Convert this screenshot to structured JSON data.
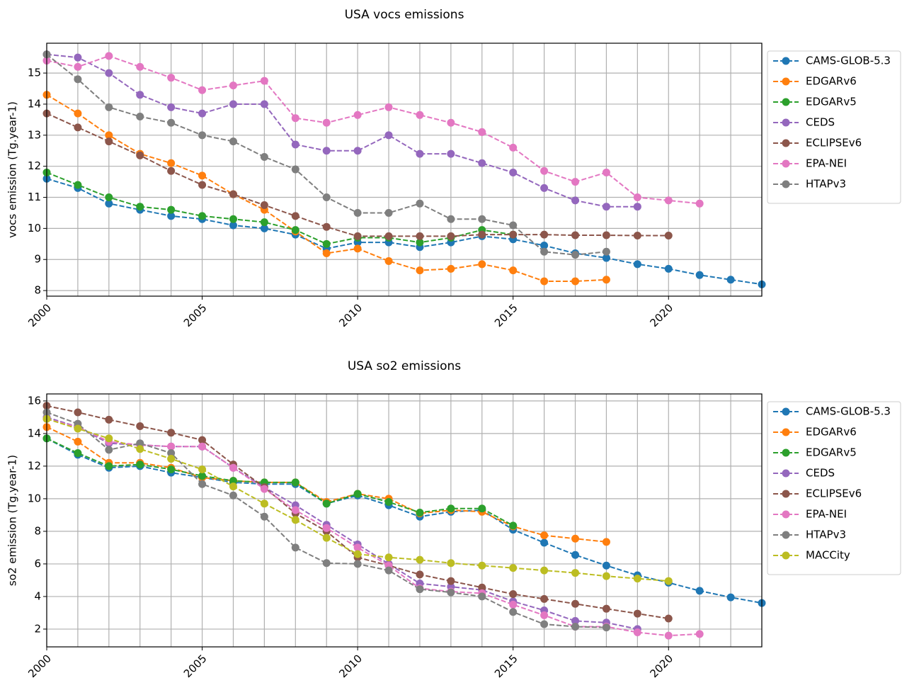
{
  "chart_data": [
    {
      "type": "line",
      "title": "USA vocs emissions",
      "ylabel": "vocs emission (Tg.year-1)",
      "x": [
        2000,
        2001,
        2002,
        2003,
        2004,
        2005,
        2006,
        2007,
        2008,
        2009,
        2010,
        2011,
        2012,
        2013,
        2014,
        2015,
        2016,
        2017,
        2018,
        2019,
        2020,
        2021,
        2022,
        2023
      ],
      "xlim": [
        2000,
        2023
      ],
      "xticks": [
        2000,
        2005,
        2010,
        2015,
        2020
      ],
      "xminorticks": [
        2001,
        2002,
        2003,
        2004,
        2006,
        2007,
        2008,
        2009,
        2011,
        2012,
        2013,
        2014,
        2016,
        2017,
        2018,
        2019,
        2021,
        2022,
        2023
      ],
      "ylim": [
        7.82,
        15.96
      ],
      "yticks": [
        8,
        9,
        10,
        11,
        12,
        13,
        14,
        15
      ],
      "grid": true,
      "legend": "outside-upper-right",
      "series": [
        {
          "name": "CAMS-GLOB-5.3",
          "color": "#1f77b4",
          "values": [
            11.6,
            11.3,
            10.8,
            10.6,
            10.4,
            10.3,
            10.1,
            10.0,
            9.8,
            9.35,
            9.55,
            9.55,
            9.4,
            9.55,
            9.75,
            9.65,
            9.45,
            9.2,
            9.05,
            8.85,
            8.7,
            8.5,
            8.35,
            8.2
          ]
        },
        {
          "name": "EDGARv6",
          "color": "#ff7f0e",
          "values": [
            14.3,
            13.7,
            13.0,
            12.4,
            12.1,
            11.7,
            11.1,
            10.6,
            9.9,
            9.2,
            9.35,
            8.95,
            8.65,
            8.7,
            8.85,
            8.65,
            8.3,
            8.3,
            8.35,
            null,
            null,
            null,
            null,
            null
          ]
        },
        {
          "name": "EDGARv5",
          "color": "#2ca02c",
          "values": [
            11.8,
            11.4,
            11.0,
            10.7,
            10.6,
            10.4,
            10.3,
            10.2,
            9.95,
            9.5,
            9.7,
            9.7,
            9.55,
            9.7,
            9.95,
            9.8,
            null,
            null,
            null,
            null,
            null,
            null,
            null,
            null
          ]
        },
        {
          "name": "CEDS",
          "color": "#9467bd",
          "values": [
            15.6,
            15.5,
            15.0,
            14.3,
            13.9,
            13.7,
            14.0,
            14.0,
            12.7,
            12.5,
            12.5,
            13.0,
            12.4,
            12.4,
            12.1,
            11.8,
            11.3,
            10.9,
            10.7,
            10.7,
            null,
            null,
            null,
            null
          ]
        },
        {
          "name": "ECLIPSEv6",
          "color": "#8c564b",
          "values": [
            13.7,
            13.25,
            12.8,
            12.35,
            11.85,
            11.4,
            11.1,
            10.75,
            10.4,
            10.05,
            9.75,
            9.75,
            9.75,
            9.75,
            9.8,
            9.8,
            9.8,
            9.78,
            9.78,
            9.77,
            9.77,
            null,
            null,
            null
          ]
        },
        {
          "name": "EPA-NEI",
          "color": "#e377c2",
          "values": [
            15.4,
            15.2,
            15.55,
            15.2,
            14.85,
            14.45,
            14.6,
            14.75,
            13.55,
            13.4,
            13.65,
            13.9,
            13.65,
            13.4,
            13.1,
            12.6,
            11.85,
            11.5,
            11.8,
            11.0,
            10.9,
            10.8,
            null,
            null
          ]
        },
        {
          "name": "HTAPv3",
          "color": "#7f7f7f",
          "values": [
            15.6,
            14.8,
            13.9,
            13.6,
            13.4,
            13.0,
            12.8,
            12.3,
            11.9,
            11.0,
            10.5,
            10.5,
            10.8,
            10.3,
            10.3,
            10.1,
            9.25,
            9.15,
            9.25,
            null,
            null,
            null,
            null,
            null
          ]
        }
      ]
    },
    {
      "type": "line",
      "title": "USA so2 emissions",
      "ylabel": "so2 emission (Tg.year-1)",
      "x": [
        2000,
        2001,
        2002,
        2003,
        2004,
        2005,
        2006,
        2007,
        2008,
        2009,
        2010,
        2011,
        2012,
        2013,
        2014,
        2015,
        2016,
        2017,
        2018,
        2019,
        2020,
        2021,
        2022,
        2023
      ],
      "xlim": [
        2000,
        2023
      ],
      "xticks": [
        2000,
        2005,
        2010,
        2015,
        2020
      ],
      "xminorticks": [
        2001,
        2002,
        2003,
        2004,
        2006,
        2007,
        2008,
        2009,
        2011,
        2012,
        2013,
        2014,
        2016,
        2017,
        2018,
        2019,
        2021,
        2022,
        2023
      ],
      "ylim": [
        0.91,
        16.43
      ],
      "yticks": [
        2,
        4,
        6,
        8,
        10,
        12,
        14,
        16
      ],
      "grid": true,
      "legend": "outside-upper-right",
      "series": [
        {
          "name": "CAMS-GLOB-5.3",
          "color": "#1f77b4",
          "values": [
            13.7,
            12.7,
            11.9,
            12.0,
            11.6,
            11.3,
            11.0,
            10.9,
            10.9,
            9.7,
            10.2,
            9.6,
            8.9,
            9.2,
            9.3,
            8.1,
            7.3,
            6.55,
            5.9,
            5.3,
            4.85,
            4.35,
            3.95,
            3.6
          ]
        },
        {
          "name": "EDGARv6",
          "color": "#ff7f0e",
          "values": [
            14.4,
            13.5,
            12.2,
            12.2,
            11.9,
            11.3,
            11.1,
            11.0,
            11.0,
            9.8,
            10.3,
            10.0,
            9.1,
            9.3,
            9.2,
            8.3,
            7.75,
            7.55,
            7.35,
            null,
            null,
            null,
            null,
            null
          ]
        },
        {
          "name": "EDGARv5",
          "color": "#2ca02c",
          "values": [
            13.7,
            12.8,
            12.0,
            12.1,
            11.8,
            11.4,
            11.1,
            11.0,
            11.0,
            9.7,
            10.3,
            9.8,
            9.15,
            9.4,
            9.4,
            8.35,
            null,
            null,
            null,
            null,
            null,
            null,
            null,
            null
          ]
        },
        {
          "name": "CEDS",
          "color": "#9467bd",
          "values": [
            15.0,
            14.4,
            13.4,
            13.3,
            13.2,
            13.2,
            11.9,
            10.7,
            9.6,
            8.4,
            7.2,
            6.0,
            4.8,
            4.6,
            4.4,
            3.7,
            3.15,
            2.5,
            2.4,
            2.0,
            null,
            null,
            null,
            null
          ]
        },
        {
          "name": "ECLIPSEv6",
          "color": "#8c564b",
          "values": [
            15.7,
            15.3,
            14.85,
            14.45,
            14.05,
            13.6,
            12.1,
            10.7,
            9.1,
            8.0,
            6.4,
            5.9,
            5.35,
            4.95,
            4.55,
            4.15,
            3.85,
            3.55,
            3.25,
            2.95,
            2.65,
            null,
            null,
            null
          ]
        },
        {
          "name": "EPA-NEI",
          "color": "#e377c2",
          "values": [
            14.9,
            14.4,
            13.5,
            13.3,
            13.2,
            13.2,
            11.9,
            10.6,
            9.3,
            8.2,
            7.0,
            5.9,
            4.5,
            4.3,
            4.2,
            3.5,
            2.85,
            2.15,
            2.15,
            1.8,
            1.6,
            1.7,
            null,
            null
          ]
        },
        {
          "name": "HTAPv3",
          "color": "#7f7f7f",
          "values": [
            15.3,
            14.6,
            13.0,
            13.4,
            12.8,
            10.9,
            10.2,
            8.9,
            7.0,
            6.05,
            6.0,
            5.6,
            4.45,
            4.25,
            4.0,
            3.05,
            2.3,
            2.15,
            2.1,
            null,
            null,
            null,
            null,
            null
          ]
        },
        {
          "name": "MACCity",
          "color": "#bcbd22",
          "values": [
            14.9,
            14.3,
            13.7,
            13.05,
            12.45,
            11.8,
            10.75,
            9.7,
            8.7,
            7.6,
            6.6,
            6.4,
            6.25,
            6.05,
            5.9,
            5.75,
            5.6,
            5.45,
            5.25,
            5.1,
            4.95,
            null,
            null,
            null
          ]
        }
      ]
    }
  ]
}
